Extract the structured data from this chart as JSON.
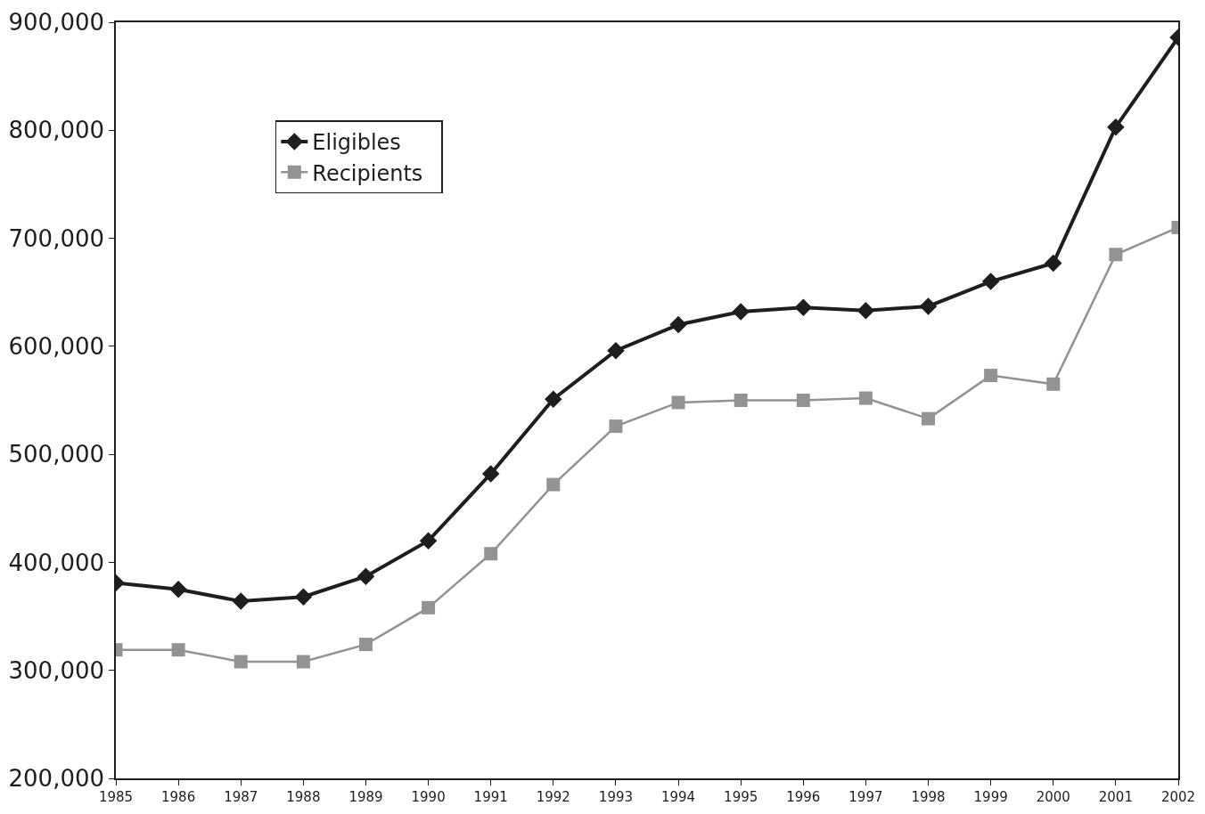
{
  "chart_data": {
    "type": "line",
    "x": [
      1985,
      1986,
      1987,
      1988,
      1989,
      1990,
      1991,
      1992,
      1993,
      1994,
      1995,
      1996,
      1997,
      1998,
      1999,
      2000,
      2001,
      2002
    ],
    "series": [
      {
        "name": "Eligibles",
        "color": "#1e1e1e",
        "marker": "diamond",
        "values": [
          381000,
          375000,
          364000,
          368000,
          387000,
          420000,
          482000,
          551000,
          596000,
          620000,
          632000,
          636000,
          633000,
          637000,
          660000,
          677000,
          803000,
          886000
        ]
      },
      {
        "name": "Recipients",
        "color": "#939393",
        "marker": "square",
        "values": [
          319000,
          319000,
          308000,
          308000,
          324000,
          358000,
          408000,
          472000,
          526000,
          548000,
          550000,
          550000,
          552000,
          533000,
          573000,
          565000,
          685000,
          710000
        ]
      }
    ],
    "xlim": [
      1985,
      2002
    ],
    "xticks": [
      1985,
      1986,
      1987,
      1988,
      1989,
      1990,
      1991,
      1992,
      1993,
      1994,
      1995,
      1996,
      1997,
      1998,
      1999,
      2000,
      2001,
      2002
    ],
    "ylim": [
      200000,
      900000
    ],
    "yticks": [
      {
        "value": 200000,
        "label": "200,000"
      },
      {
        "value": 300000,
        "label": "300,000"
      },
      {
        "value": 400000,
        "label": "400,000"
      },
      {
        "value": 500000,
        "label": "500,000"
      },
      {
        "value": 600000,
        "label": "600,000"
      },
      {
        "value": 700000,
        "label": "700,000"
      },
      {
        "value": 800000,
        "label": "800,000"
      },
      {
        "value": 900000,
        "label": "900,000"
      }
    ],
    "legend": "top left",
    "line_style": "solid"
  }
}
